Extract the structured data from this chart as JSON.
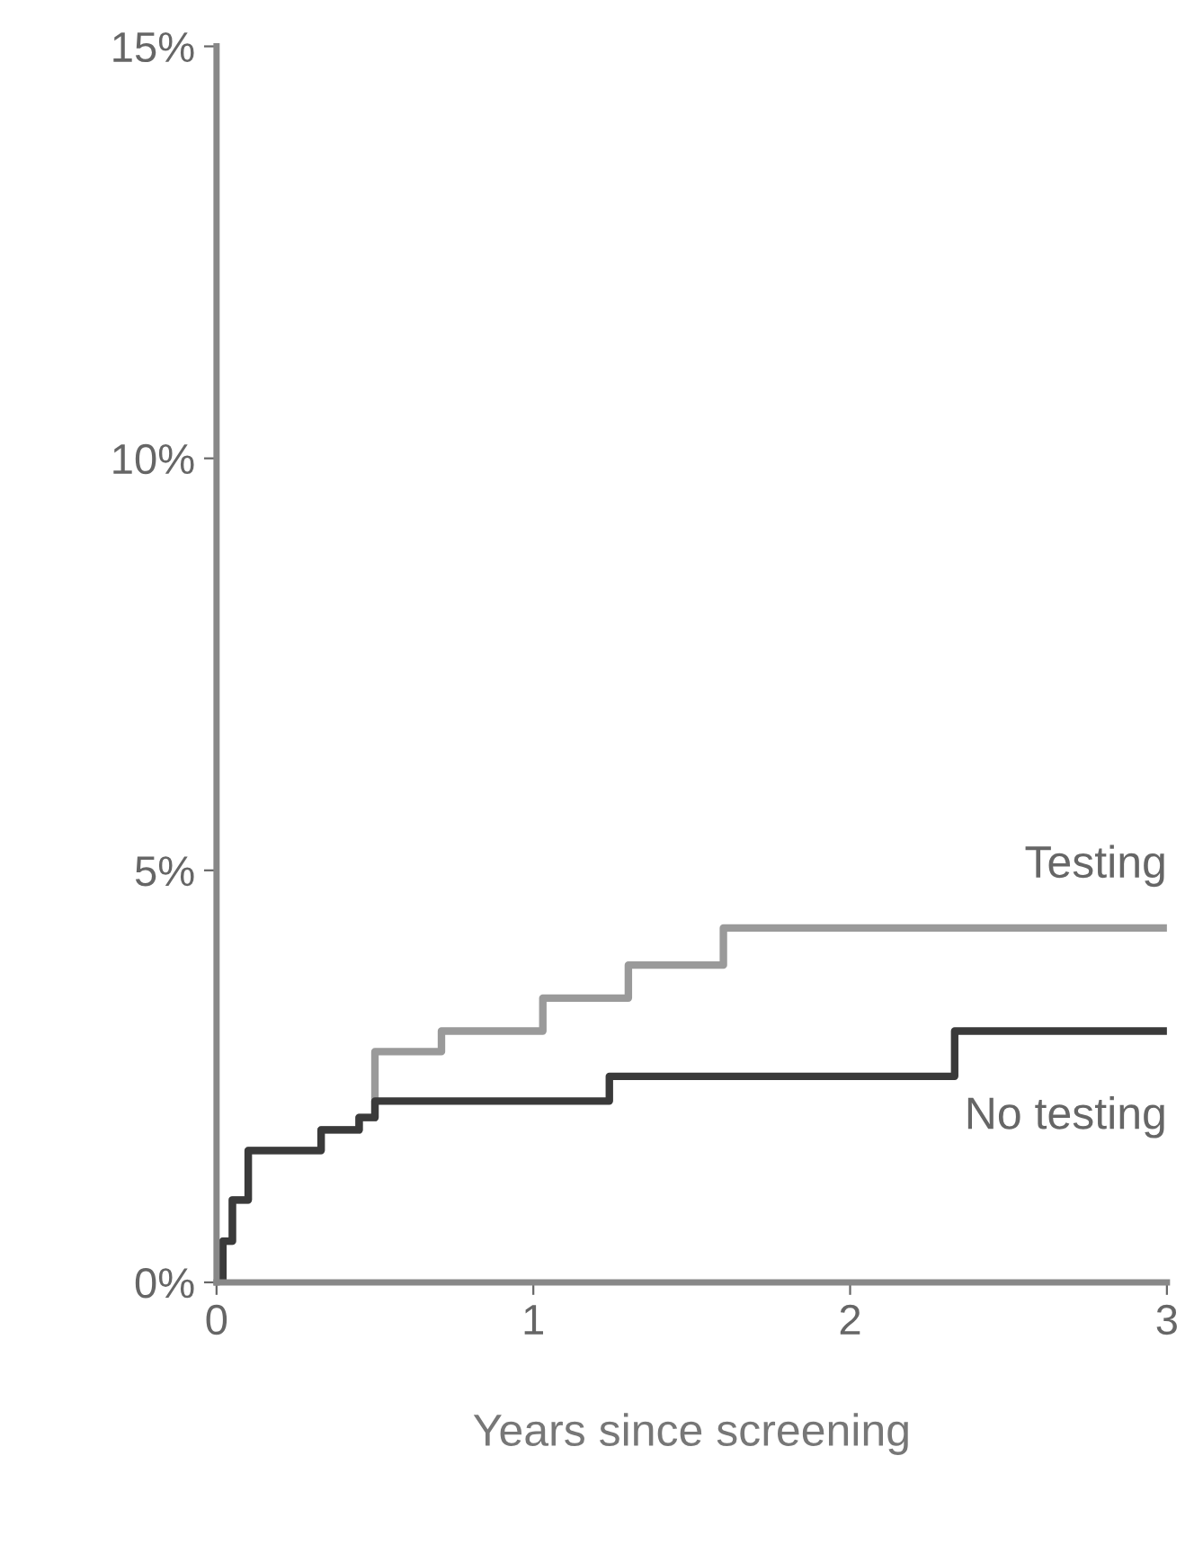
{
  "chart_data": {
    "type": "step",
    "xlabel": "Years since screening",
    "xlim": [
      0,
      3
    ],
    "xticks": [
      0,
      1,
      2,
      3
    ],
    "ylim": [
      0,
      15
    ],
    "yticks": [
      {
        "value": 0,
        "label": "0%"
      },
      {
        "value": 5,
        "label": "5%"
      },
      {
        "value": 10,
        "label": "10%"
      },
      {
        "value": 15,
        "label": "15%"
      }
    ],
    "grid": false,
    "legend": false,
    "series": [
      {
        "name": "Testing",
        "color": "#9a9a9a",
        "x": [
          0,
          0.02,
          0.05,
          0.1,
          0.33,
          0.45,
          0.5,
          0.71,
          1.03,
          1.3,
          1.6,
          3
        ],
        "values": [
          0,
          0.5,
          1.0,
          1.6,
          1.85,
          2.0,
          2.8,
          3.05,
          3.45,
          3.85,
          4.3,
          4.3
        ]
      },
      {
        "name": "No testing",
        "color": "#3a3a3a",
        "x": [
          0,
          0.02,
          0.05,
          0.1,
          0.33,
          0.45,
          0.5,
          1.24,
          2.33,
          3
        ],
        "values": [
          0,
          0.5,
          1.0,
          1.6,
          1.85,
          2.0,
          2.2,
          2.5,
          3.05,
          3.05
        ]
      }
    ]
  }
}
